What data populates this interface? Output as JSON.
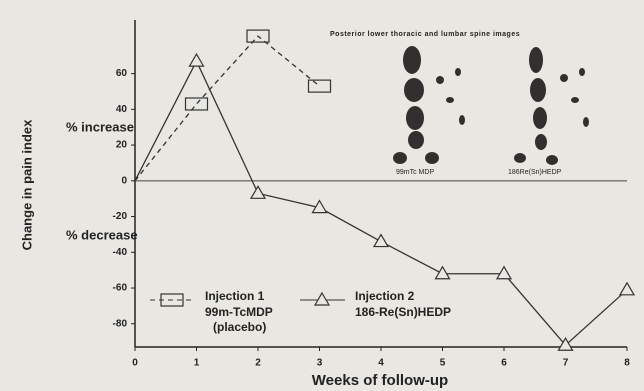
{
  "chart_data": {
    "type": "line",
    "y_label": "Change in pain index",
    "x_label": "Weeks of follow-up",
    "annotations": [
      "% increase",
      "% decrease"
    ],
    "image_title": "Posterior lower thoracic and lumbar spine images",
    "image_captions": [
      "99mTc MDP",
      "186Re(Sn)HEDP"
    ],
    "x": [
      0,
      1,
      2,
      3,
      4,
      5,
      6,
      7,
      8
    ],
    "series": [
      {
        "name": "Injection 1",
        "description": [
          "99m-TcMDP",
          "(placebo)"
        ],
        "color": "#333333",
        "dash": true,
        "marker": "square",
        "values": [
          0,
          43,
          81,
          53,
          null,
          null,
          null,
          null,
          null
        ]
      },
      {
        "name": "Injection 2",
        "description": [
          "186-Re(Sn)HEDP"
        ],
        "color": "#333333",
        "dash": false,
        "marker": "triangle",
        "values": [
          0,
          67,
          -7,
          -15,
          -34,
          -52,
          -52,
          -92,
          -61
        ]
      }
    ],
    "xlim": [
      0,
      8
    ],
    "xticks": [
      0,
      1,
      2,
      3,
      4,
      5,
      6,
      7,
      8
    ],
    "ylim": [
      -93,
      90
    ],
    "yticks": [
      60,
      40,
      20,
      0,
      -20,
      -40,
      -60,
      -80
    ]
  }
}
